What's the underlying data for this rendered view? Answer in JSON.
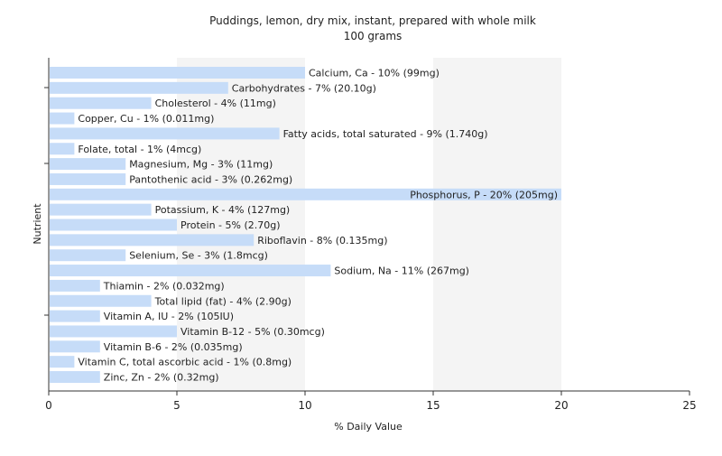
{
  "chart_data": {
    "type": "bar",
    "orientation": "horizontal",
    "title": "Puddings, lemon, dry mix, instant, prepared with whole milk",
    "subtitle": "100 grams",
    "xlabel": "% Daily Value",
    "ylabel": "Nutrient",
    "xlim": [
      0,
      25
    ],
    "xticks": [
      0,
      5,
      10,
      15,
      20,
      25
    ],
    "grid": "vertical-bands",
    "bar_color": "#c6dcf8",
    "categories": [
      "Calcium, Ca",
      "Carbohydrates",
      "Cholesterol",
      "Copper, Cu",
      "Fatty acids, total saturated",
      "Folate, total",
      "Magnesium, Mg",
      "Pantothenic acid",
      "Phosphorus, P",
      "Potassium, K",
      "Protein",
      "Riboflavin",
      "Selenium, Se",
      "Sodium, Na",
      "Thiamin",
      "Total lipid (fat)",
      "Vitamin A, IU",
      "Vitamin B-12",
      "Vitamin B-6",
      "Vitamin C, total ascorbic acid",
      "Zinc, Zn"
    ],
    "values": [
      10,
      7,
      4,
      1,
      9,
      1,
      3,
      3,
      20,
      4,
      5,
      8,
      3,
      11,
      2,
      4,
      2,
      5,
      2,
      1,
      2
    ],
    "labels": [
      "Calcium, Ca - 10% (99mg)",
      "Carbohydrates - 7% (20.10g)",
      "Cholesterol - 4% (11mg)",
      "Copper, Cu - 1% (0.011mg)",
      "Fatty acids, total saturated - 9% (1.740g)",
      "Folate, total - 1% (4mcg)",
      "Magnesium, Mg - 3% (11mg)",
      "Pantothenic acid - 3% (0.262mg)",
      "Phosphorus, P - 20% (205mg)",
      "Potassium, K - 4% (127mg)",
      "Protein - 5% (2.70g)",
      "Riboflavin - 8% (0.135mg)",
      "Selenium, Se - 3% (1.8mcg)",
      "Sodium, Na - 11% (267mg)",
      "Thiamin - 2% (0.032mg)",
      "Total lipid (fat) - 4% (2.90g)",
      "Vitamin A, IU - 2% (105IU)",
      "Vitamin B-12 - 5% (0.30mcg)",
      "Vitamin B-6 - 2% (0.035mg)",
      "Vitamin C, total ascorbic acid - 1% (0.8mg)",
      "Zinc, Zn - 2% (0.32mg)"
    ]
  }
}
